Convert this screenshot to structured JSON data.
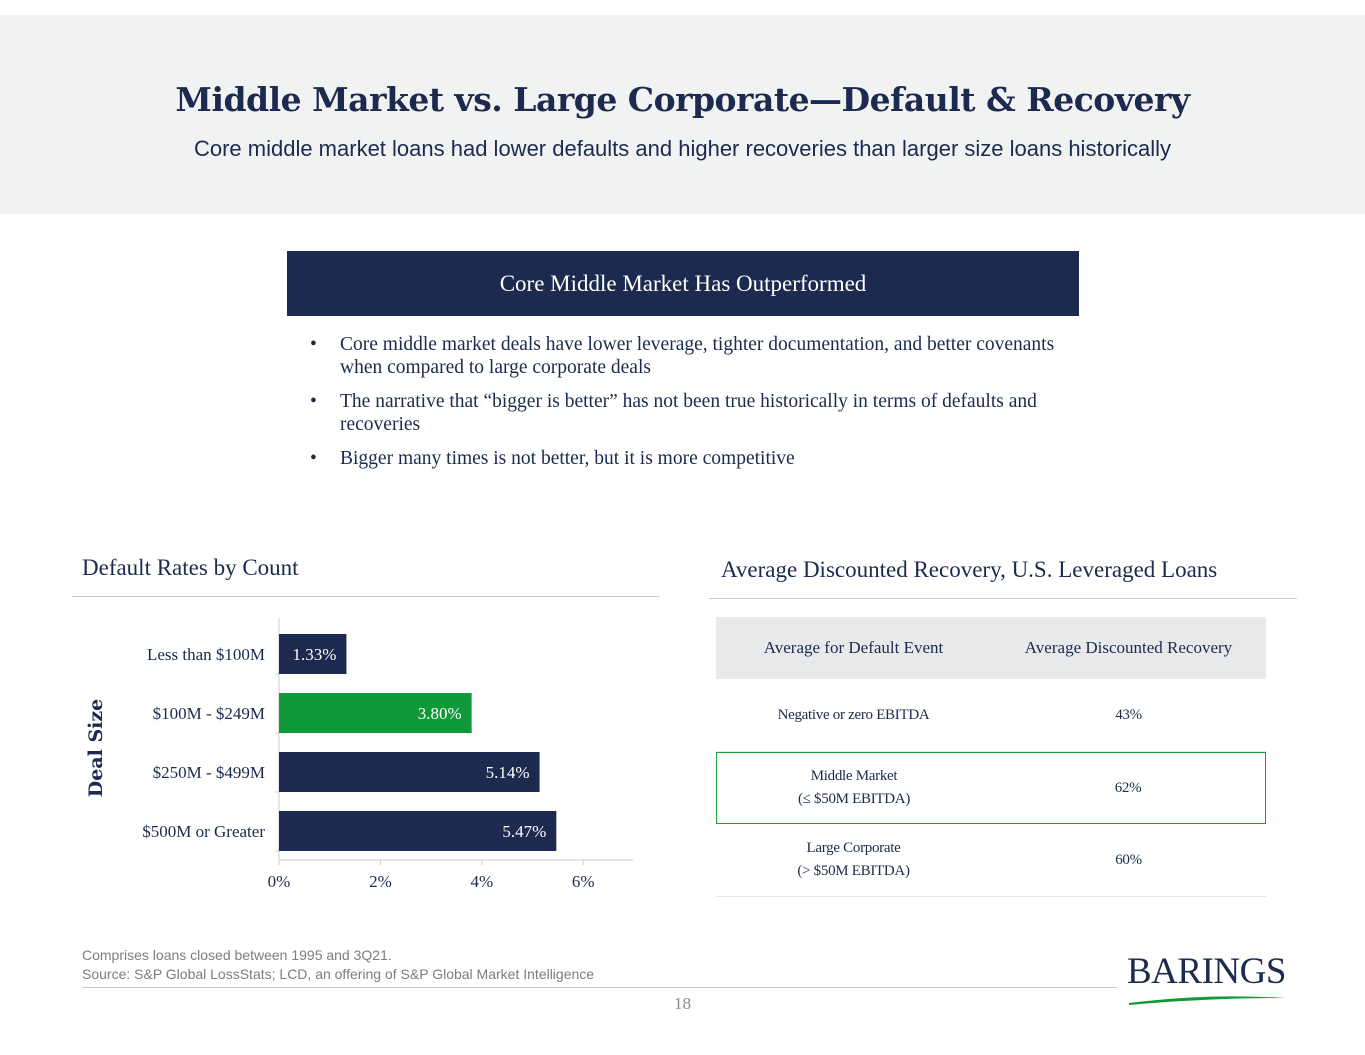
{
  "header": {
    "title": "Middle Market vs. Large Corporate—Default & Recovery",
    "subtitle": "Core middle market loans had lower defaults and higher recoveries than larger size loans historically"
  },
  "callout": {
    "title": "Core Middle Market Has Outperformed",
    "bullets": [
      "Core middle market deals have lower leverage, tighter documentation, and better covenants when compared to large corporate deals",
      "The narrative that “bigger is better” has not been true historically in terms of defaults and recoveries",
      "Bigger many times is not better, but it is more competitive"
    ],
    "bullet_glyph": "•"
  },
  "left_section": {
    "title": "Default Rates by Count"
  },
  "right_section": {
    "title": "Average Discounted Recovery, U.S. Leveraged Loans"
  },
  "chart_data": {
    "type": "bar",
    "orientation": "horizontal",
    "title": "Default Rates by Count",
    "ylabel": "Deal Size",
    "xlabel": "",
    "categories": [
      "Less than $100M",
      "$100M - $249M",
      "$250M - $499M",
      "$500M or Greater"
    ],
    "values": [
      1.33,
      3.8,
      5.14,
      5.47
    ],
    "data_labels": [
      "1.33%",
      "3.80%",
      "5.14%",
      "5.47%"
    ],
    "bar_colors": [
      "#1b2a4e",
      "#0f9939",
      "#1b2a4e",
      "#1b2a4e"
    ],
    "xlim": [
      0,
      7
    ],
    "xticks": [
      0,
      2,
      4,
      6
    ],
    "xtick_labels": [
      "0%",
      "2%",
      "4%",
      "6%"
    ],
    "grid": false
  },
  "recovery_table": {
    "headers": [
      "Average for Default Event",
      "Average Discounted Recovery"
    ],
    "rows": [
      {
        "event": [
          "Negative or zero EBITDA"
        ],
        "value": "43%"
      },
      {
        "event": [
          "Middle Market",
          "(≤ $50M EBITDA)"
        ],
        "value": "62%",
        "highlight": true
      },
      {
        "event": [
          "Large Corporate",
          "(> $50M EBITDA)"
        ],
        "value": "60%"
      }
    ],
    "highlight_color": "#1e9a3c"
  },
  "footer": {
    "note": "Comprises loans closed between 1995 and 3Q21.",
    "source": "Source: S&P Global LossStats; LCD, an offering of S&P Global Market Intelligence",
    "page_number": "18",
    "logo_text": "BARINGS"
  },
  "colors": {
    "navy": "#1b2a4e",
    "green": "#0f9939",
    "header_bg": "#f1f2f2"
  }
}
